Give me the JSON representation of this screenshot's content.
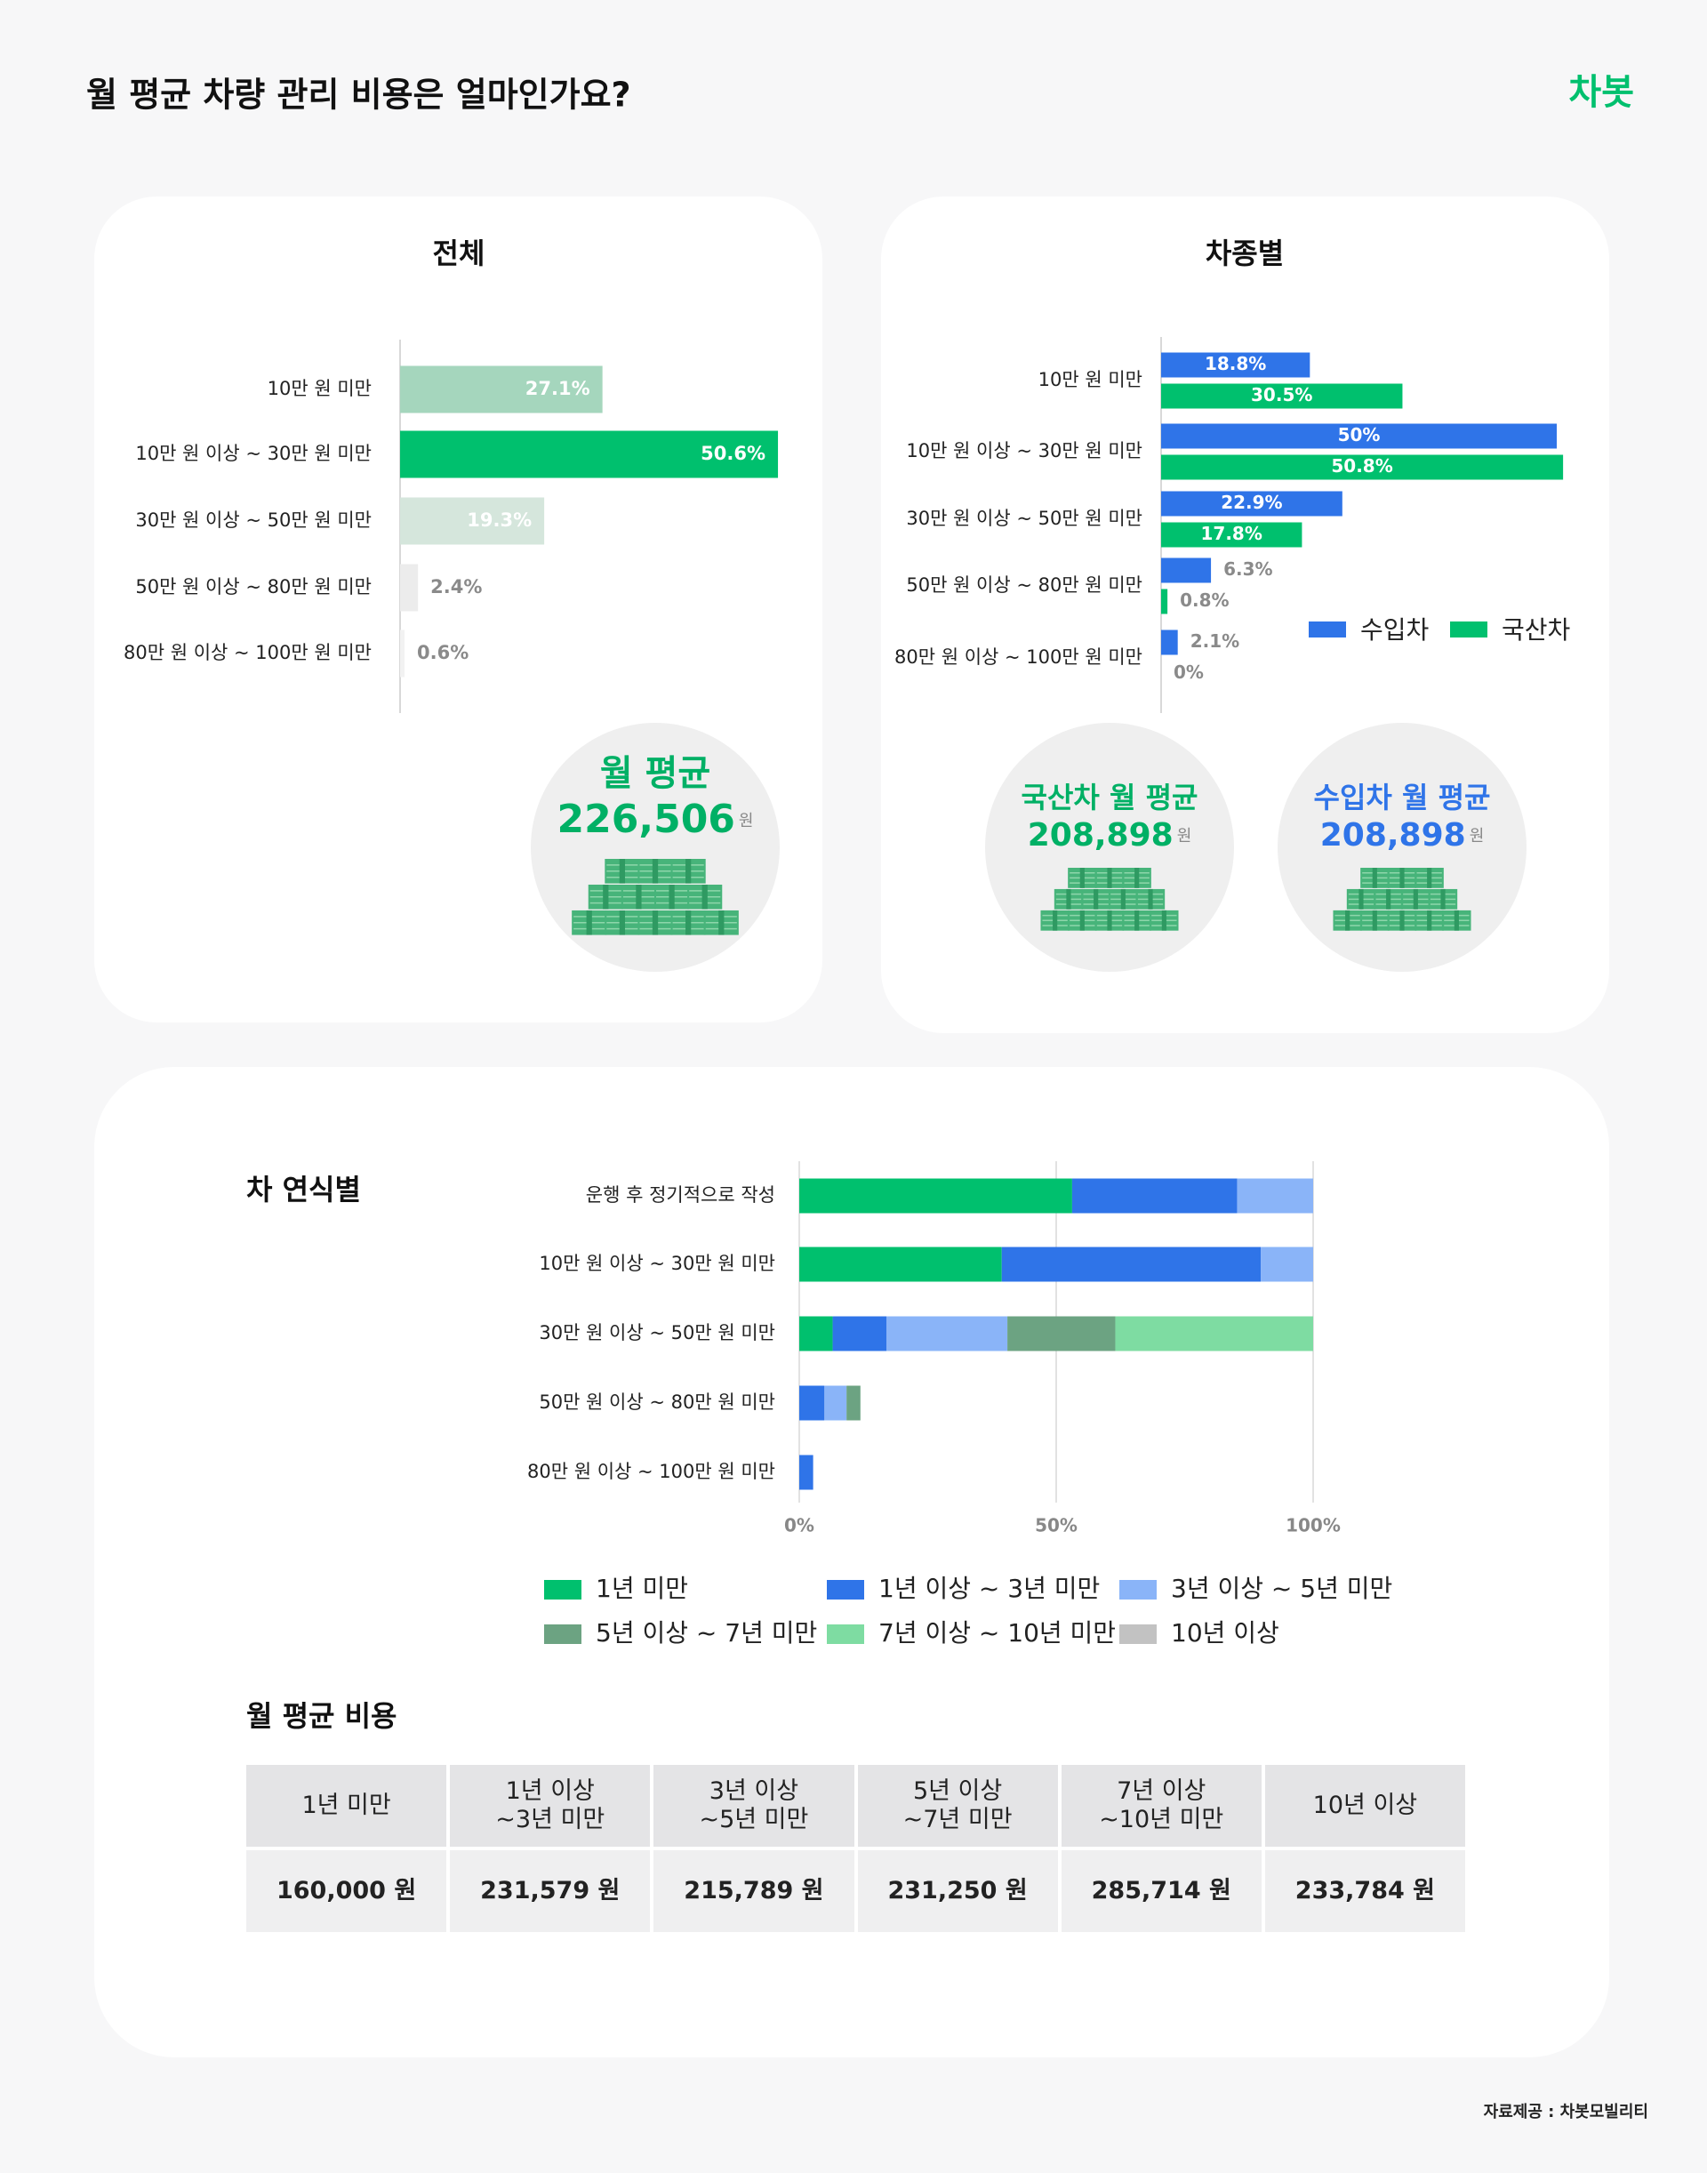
{
  "header": {
    "title": "월 평균 차량 관리 비용은 얼마인가요?",
    "logo": "차봇"
  },
  "chart_data": [
    {
      "type": "bar",
      "orientation": "horizontal",
      "title": "전체",
      "categories": [
        "10만 원 미만",
        "10만 원 이상 ~ 30만 원 미만",
        "30만 원 이상 ~ 50만 원 미만",
        "50만 원 이상 ~ 80만 원 미만",
        "80만 원 이상 ~ 100만 원 미만"
      ],
      "values": [
        27.1,
        50.6,
        19.3,
        2.4,
        0.6
      ],
      "value_labels": [
        "27.1%",
        "50.6%",
        "19.3%",
        "2.4%",
        "0.6%"
      ],
      "colors": [
        "#a5d6bd",
        "#00c06e",
        "#d5e6dc",
        "#ececec",
        "#f2f2f2"
      ]
    },
    {
      "type": "bar",
      "orientation": "horizontal",
      "title": "차종별",
      "categories": [
        "10만 원 미만",
        "10만 원 이상 ~ 30만 원 미만",
        "30만 원 이상 ~ 50만 원 미만",
        "50만 원 이상 ~ 80만 원 미만",
        "80만 원 이상 ~ 100만 원 미만"
      ],
      "series": [
        {
          "name": "수입차",
          "color": "#2f74e8",
          "values": [
            18.8,
            50,
            22.9,
            6.3,
            2.1
          ],
          "value_labels": [
            "18.8%",
            "50%",
            "22.9%",
            "6.3%",
            "2.1%"
          ]
        },
        {
          "name": "국산차",
          "color": "#00c06e",
          "values": [
            30.5,
            50.8,
            17.8,
            0.8,
            0
          ],
          "value_labels": [
            "30.5%",
            "50.8%",
            "17.8%",
            "0.8%",
            "0%"
          ]
        }
      ],
      "legend": "right"
    },
    {
      "type": "bar",
      "orientation": "horizontal",
      "stacked": true,
      "title": "차 연식별",
      "categories": [
        "운행 후 정기적으로 작성",
        "10만 원 이상 ~ 30만 원 미만",
        "30만 원 이상 ~ 50만 원 미만",
        "50만 원 이상 ~ 80만 원 미만",
        "80만 원 이상 ~ 100만 원 미만"
      ],
      "xlim": [
        0,
        100
      ],
      "xticks": [
        {
          "value": 0,
          "label": "0%"
        },
        {
          "value": 50,
          "label": "50%"
        },
        {
          "value": 100,
          "label": "100%"
        }
      ],
      "grid": true,
      "legend": "bottom",
      "series": [
        {
          "name": "1년 미만",
          "color": "#00c06e",
          "values": [
            53.1,
            39.4,
            6.5,
            0,
            0
          ]
        },
        {
          "name": "1년 이상 ~ 3년 미만",
          "color": "#2f74e8",
          "values": [
            32.1,
            50.4,
            10.5,
            4.9,
            2.7
          ]
        },
        {
          "name": "3년 이상 ~ 5년 미만",
          "color": "#8ab4f8",
          "values": [
            14.8,
            10.2,
            23.5,
            4.3,
            0
          ]
        },
        {
          "name": "5년 이상 ~ 7년 미만",
          "color": "#6ca382",
          "values": [
            0,
            0,
            21,
            2.7,
            0
          ]
        },
        {
          "name": "7년 이상 ~ 10년 미만",
          "color": "#7edca2",
          "values": [
            0,
            0,
            38.5,
            0,
            0
          ]
        },
        {
          "name": "10년 이상",
          "color": "#c2c2c2",
          "values": [
            0,
            0,
            0,
            0,
            0
          ]
        }
      ]
    }
  ],
  "summaries": [
    {
      "label": "월 평균",
      "value": "226,506",
      "unit": "원",
      "color": "#00b065"
    },
    {
      "label": "국산차 월 평균",
      "value": "208,898",
      "unit": "원",
      "color": "#00b065"
    },
    {
      "label": "수입차 월 평균",
      "value": "208,898",
      "unit": "원",
      "color": "#2f74e8"
    }
  ],
  "table": {
    "title": "월 평균 비용",
    "headers": [
      "1년 미만",
      "1년 이상\n~3년 미만",
      "3년 이상\n~5년 미만",
      "5년 이상\n~7년 미만",
      "7년 이상\n~10년 미만",
      "10년 이상"
    ],
    "rows": [
      [
        "160,000 원",
        "231,579 원",
        "215,789 원",
        "231,250 원",
        "285,714 원",
        "233,784 원"
      ]
    ]
  },
  "source": "자료제공 : 차봇모빌리티"
}
